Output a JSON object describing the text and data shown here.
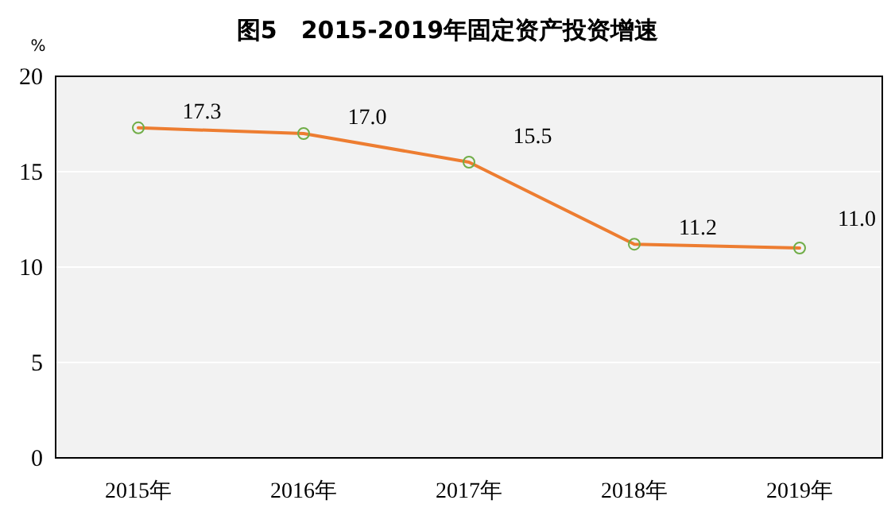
{
  "chart_data": {
    "type": "line",
    "title": "图5　2015-2019年固定资产投资增速",
    "ylabel": "%",
    "categories": [
      "2015年",
      "2016年",
      "2017年",
      "2018年",
      "2019年"
    ],
    "series": [
      {
        "color": "#ed7d31",
        "values": [
          17.3,
          17.0,
          15.5,
          11.2,
          11.0
        ],
        "value_labels": [
          "17.3",
          "17.0",
          "15.5",
          "11.2",
          "11.0"
        ]
      }
    ],
    "ylim": [
      0,
      20
    ],
    "yticks": [
      0,
      5,
      10,
      15,
      20
    ],
    "grid": "y",
    "marker": "circle"
  }
}
